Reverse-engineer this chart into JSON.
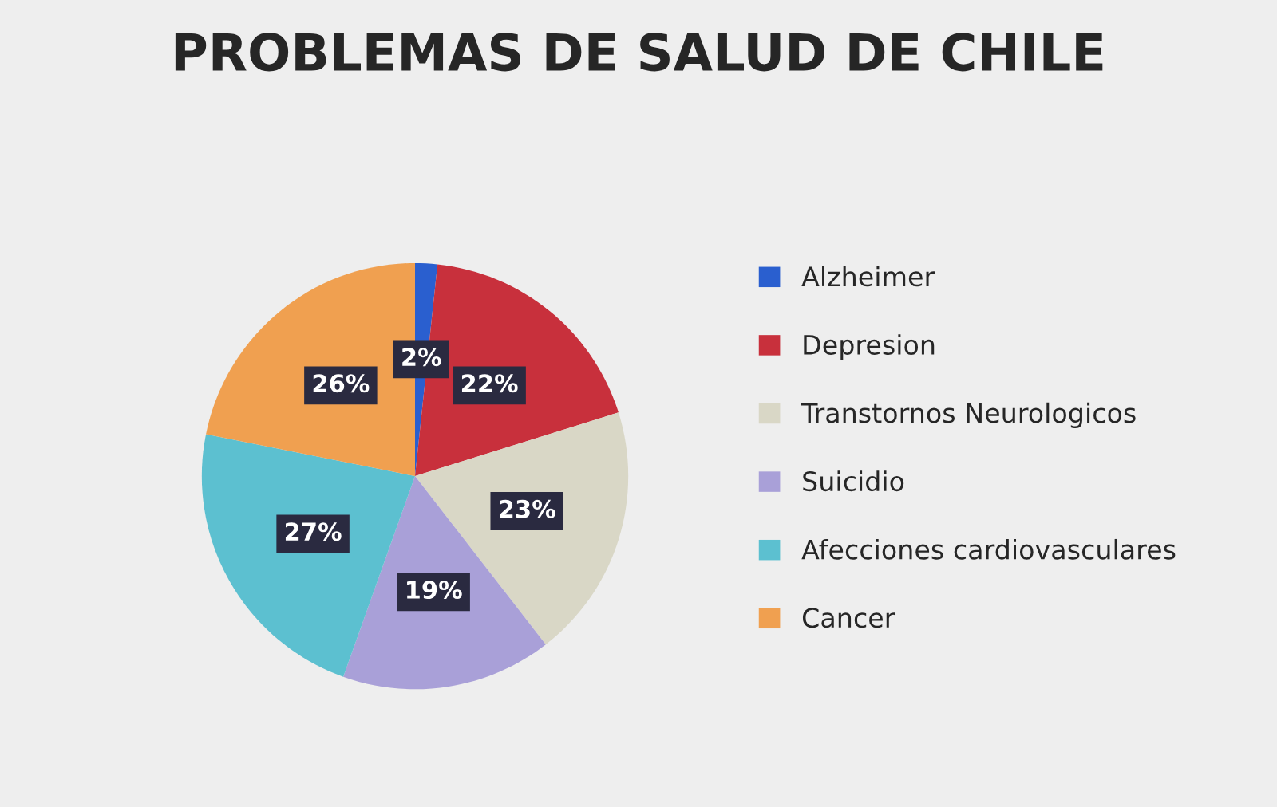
{
  "chart_data": {
    "type": "pie",
    "title": "PROBLEMAS DE SALUD DE CHILE",
    "categories": [
      "Alzheimer",
      "Depresion",
      "Transtornos Neurologicos",
      "Suicidio",
      "Afecciones cardiovasculares",
      "Cancer"
    ],
    "values": [
      2,
      22,
      23,
      19,
      27,
      26
    ],
    "value_labels": [
      "2%",
      "22%",
      "23%",
      "19%",
      "27%",
      "26%"
    ],
    "colors": [
      "#2a5fcf",
      "#c8303c",
      "#d9d7c6",
      "#a9a0d8",
      "#5cc0d0",
      "#f0a050"
    ],
    "legend": "right"
  }
}
